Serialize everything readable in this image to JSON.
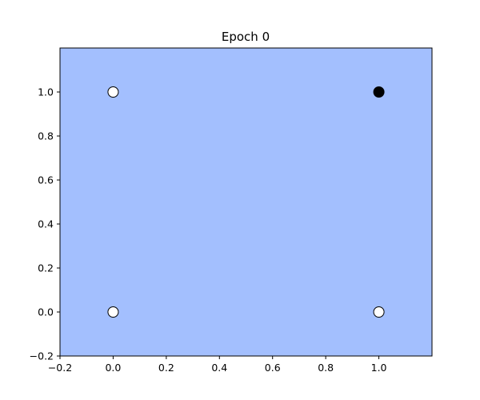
{
  "chart_data": {
    "type": "scatter",
    "title": "Epoch 0",
    "xlabel": "",
    "ylabel": "",
    "xlim": [
      -0.2,
      1.2
    ],
    "ylim": [
      -0.2,
      1.2
    ],
    "xticks": [
      -0.2,
      0.0,
      0.2,
      0.4,
      0.6,
      0.8,
      1.0
    ],
    "yticks": [
      -0.2,
      0.0,
      0.2,
      0.4,
      0.6,
      0.8,
      1.0
    ],
    "xtick_labels": [
      "−0.2",
      "0.0",
      "0.2",
      "0.4",
      "0.6",
      "0.8",
      "1.0"
    ],
    "ytick_labels": [
      "−0.2",
      "0.0",
      "0.2",
      "0.4",
      "0.6",
      "0.8",
      "1.0"
    ],
    "grid": false,
    "background_color": "#a3bffe",
    "points": [
      {
        "x": 0,
        "y": 0,
        "class": 0,
        "color": "#ffffff"
      },
      {
        "x": 0,
        "y": 1,
        "class": 0,
        "color": "#ffffff"
      },
      {
        "x": 1,
        "y": 0,
        "class": 0,
        "color": "#ffffff"
      },
      {
        "x": 1,
        "y": 1,
        "class": 1,
        "color": "#000000"
      }
    ]
  }
}
